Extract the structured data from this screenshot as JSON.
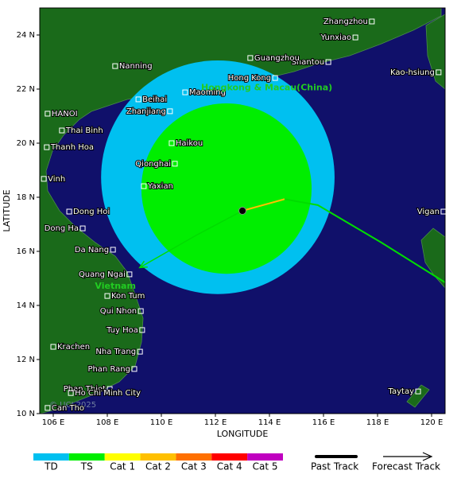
{
  "chart_data": {
    "type": "storm-map",
    "xlabel": "LONGITUDE",
    "ylabel": "LATITUDE",
    "xlim": [
      105.5,
      120.5
    ],
    "ylim": [
      10,
      25
    ],
    "xticks": [
      {
        "value": 106,
        "label": "106 E"
      },
      {
        "value": 108,
        "label": "108 E"
      },
      {
        "value": 110,
        "label": "110 E"
      },
      {
        "value": 112,
        "label": "112 E"
      },
      {
        "value": 114,
        "label": "114 E"
      },
      {
        "value": 116,
        "label": "116 E"
      },
      {
        "value": 118,
        "label": "118 E"
      },
      {
        "value": 120,
        "label": "120 E"
      }
    ],
    "yticks": [
      {
        "value": 10,
        "label": "10 N"
      },
      {
        "value": 12,
        "label": "12 N"
      },
      {
        "value": 14,
        "label": "14 N"
      },
      {
        "value": 16,
        "label": "16 N"
      },
      {
        "value": 18,
        "label": "18 N"
      },
      {
        "value": 20,
        "label": "20 N"
      },
      {
        "value": 22,
        "label": "22 N"
      },
      {
        "value": 24,
        "label": "24 N"
      }
    ],
    "cities": [
      {
        "name": "Zhangzhou",
        "lon": 117.79,
        "lat": 24.5,
        "side": "left"
      },
      {
        "name": "Yunxiao",
        "lon": 117.18,
        "lat": 23.91,
        "side": "left"
      },
      {
        "name": "Kao-hsiung",
        "lon": 120.26,
        "lat": 22.62,
        "side": "left"
      },
      {
        "name": "Shantou",
        "lon": 116.18,
        "lat": 23.0,
        "side": "left"
      },
      {
        "name": "Guangzhou",
        "lon": 113.29,
        "lat": 23.15,
        "side": "right"
      },
      {
        "name": "Hong Kong",
        "lon": 114.21,
        "lat": 22.41,
        "side": "left"
      },
      {
        "name": "Nanning",
        "lon": 108.29,
        "lat": 22.85,
        "side": "right"
      },
      {
        "name": "Beihai",
        "lon": 109.15,
        "lat": 21.62,
        "side": "right"
      },
      {
        "name": "Maoming",
        "lon": 110.88,
        "lat": 21.88,
        "side": "right"
      },
      {
        "name": "Zhanjiang",
        "lon": 110.32,
        "lat": 21.18,
        "side": "left"
      },
      {
        "name": "HANOI",
        "lon": 105.79,
        "lat": 21.09,
        "side": "right"
      },
      {
        "name": "Thai Binh",
        "lon": 106.32,
        "lat": 20.47,
        "side": "right"
      },
      {
        "name": "Thanh Hoa",
        "lon": 105.76,
        "lat": 19.85,
        "side": "right"
      },
      {
        "name": "Haikou",
        "lon": 110.38,
        "lat": 20.0,
        "side": "right"
      },
      {
        "name": "Qionghai",
        "lon": 110.5,
        "lat": 19.24,
        "side": "left"
      },
      {
        "name": "Yaxian",
        "lon": 109.35,
        "lat": 18.41,
        "side": "right"
      },
      {
        "name": "Vinh",
        "lon": 105.65,
        "lat": 18.68,
        "side": "right"
      },
      {
        "name": "Dong Hoi",
        "lon": 106.59,
        "lat": 17.47,
        "side": "right"
      },
      {
        "name": "Dong Ha",
        "lon": 107.09,
        "lat": 16.85,
        "side": "left"
      },
      {
        "name": "Da Nang",
        "lon": 108.21,
        "lat": 16.06,
        "side": "left"
      },
      {
        "name": "Quang Ngai",
        "lon": 108.82,
        "lat": 15.15,
        "side": "left"
      },
      {
        "name": "Kon Tum",
        "lon": 108.0,
        "lat": 14.35,
        "side": "right"
      },
      {
        "name": "Qui Nhon",
        "lon": 109.24,
        "lat": 13.79,
        "side": "left"
      },
      {
        "name": "Tuy Hoa",
        "lon": 109.29,
        "lat": 13.09,
        "side": "left"
      },
      {
        "name": "Krachen",
        "lon": 106.0,
        "lat": 12.47,
        "side": "right"
      },
      {
        "name": "Nha Trang",
        "lon": 109.21,
        "lat": 12.29,
        "side": "left"
      },
      {
        "name": "Phan Rang",
        "lon": 109.0,
        "lat": 11.65,
        "side": "left"
      },
      {
        "name": "Phan Thiet",
        "lon": 108.09,
        "lat": 10.91,
        "side": "left"
      },
      {
        "name": "Ho Chi Minh City",
        "lon": 106.65,
        "lat": 10.76,
        "side": "right"
      },
      {
        "name": "Can Tho",
        "lon": 105.79,
        "lat": 10.21,
        "side": "right"
      },
      {
        "name": "Vigan",
        "lon": 120.44,
        "lat": 17.47,
        "side": "left"
      },
      {
        "name": "Taytay",
        "lon": 119.5,
        "lat": 10.82,
        "side": "left"
      }
    ],
    "regions": [
      {
        "name": "Hongkong & Macau(China)",
        "lon": 113.9,
        "lat": 22.05,
        "color": "#22cc22"
      },
      {
        "name": "Vietnam",
        "lon": 108.3,
        "lat": 14.7,
        "color": "#22cc22"
      }
    ],
    "wind_areas": [
      {
        "name": "TD",
        "lon": 112.09,
        "lat": 18.74,
        "radius": 4.32,
        "color": "#00c0f0"
      },
      {
        "name": "TS",
        "lon": 112.41,
        "lat": 18.32,
        "radius": 3.15,
        "color": "#00ee00"
      }
    ],
    "storm": {
      "lon": 113.0,
      "lat": 17.5
    },
    "past_track": [
      {
        "color": "#ffc000",
        "lon": [
          113.0,
          114.56
        ],
        "lat": [
          17.5,
          17.93
        ]
      },
      {
        "color": "#00dd00",
        "lon": [
          114.56,
          115.79,
          118.15,
          120.5
        ],
        "lat": [
          17.93,
          17.71,
          16.32,
          14.85
        ]
      }
    ],
    "forecast_track": {
      "color": "#00dd00",
      "lon": [
        113.0,
        111.3,
        109.2
      ],
      "lat": [
        17.5,
        16.6,
        15.4
      ]
    },
    "copyright": "© UCI 2025",
    "legend": {
      "categories": [
        {
          "label": "TD",
          "color": "#00c0f0"
        },
        {
          "label": "TS",
          "color": "#00ee00"
        },
        {
          "label": "Cat 1",
          "color": "#ffff00"
        },
        {
          "label": "Cat 2",
          "color": "#ffc000"
        },
        {
          "label": "Cat 3",
          "color": "#ff7000"
        },
        {
          "label": "Cat 4",
          "color": "#ff0000"
        },
        {
          "label": "Cat 5",
          "color": "#c000c0"
        }
      ],
      "past_track": "Past Track",
      "forecast_track": "Forecast Track"
    }
  }
}
